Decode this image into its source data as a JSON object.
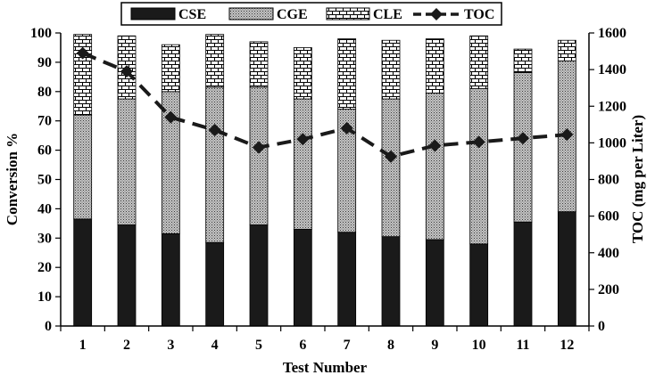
{
  "chart_data": {
    "type": "bar",
    "xlabel": "Test Number",
    "ylabel": "Conversion %",
    "y2label": "TOC (mg per Liter)",
    "categories": [
      "1",
      "2",
      "3",
      "4",
      "5",
      "6",
      "7",
      "8",
      "9",
      "10",
      "11",
      "12"
    ],
    "ylim": [
      0,
      100
    ],
    "y2lim": [
      0,
      1600
    ],
    "yticks": [
      "0",
      "10",
      "20",
      "30",
      "40",
      "50",
      "60",
      "70",
      "80",
      "90",
      "100"
    ],
    "y2ticks": [
      "0",
      "200",
      "400",
      "600",
      "800",
      "1000",
      "1200",
      "1400",
      "1600"
    ],
    "stacked": true,
    "legend_position": "top",
    "series": [
      {
        "name": "CSE",
        "kind": "bar",
        "pattern": "solid",
        "color": "#1a1a1a",
        "values": [
          36.5,
          34.5,
          31.5,
          28.5,
          34.5,
          33.0,
          32.0,
          30.5,
          29.5,
          28.0,
          35.5,
          39.0
        ]
      },
      {
        "name": "CGE",
        "kind": "bar",
        "pattern": "dots",
        "color": "#9a9a9a",
        "values": [
          35.5,
          43.0,
          48.5,
          53.0,
          47.0,
          44.5,
          42.0,
          47.0,
          50.0,
          53.0,
          51.0,
          51.5
        ]
      },
      {
        "name": "CLE",
        "kind": "bar",
        "pattern": "bricks",
        "color": "#ffffff",
        "values": [
          27.5,
          21.5,
          16.0,
          18.0,
          15.5,
          17.5,
          24.0,
          20.0,
          18.5,
          18.0,
          8.0,
          7.0
        ]
      },
      {
        "name": "TOC",
        "kind": "line",
        "axis": "right",
        "style": "dashed",
        "marker": "diamond",
        "color": "#1a1a1a",
        "values": [
          1490,
          1390,
          1140,
          1070,
          975,
          1020,
          1080,
          925,
          985,
          1005,
          1025,
          1045
        ]
      }
    ]
  }
}
